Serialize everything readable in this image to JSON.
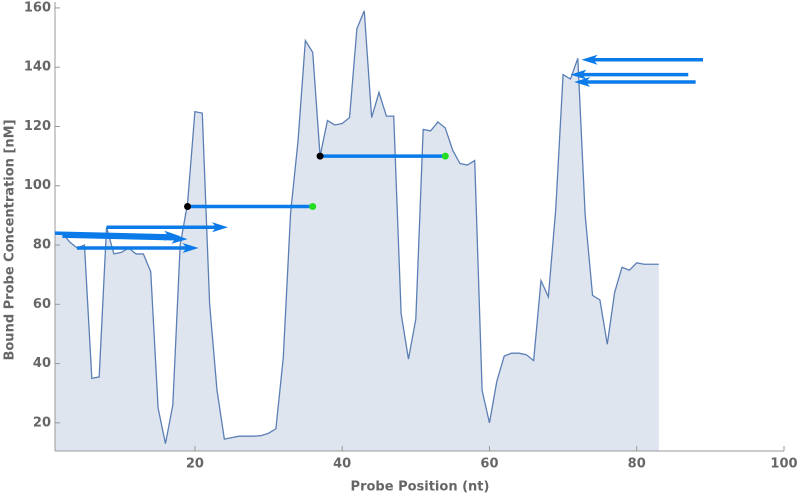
{
  "chart_data": {
    "type": "area",
    "x_label": "Probe Position (nt)",
    "y_label": "Bound Probe Concentration [nM]",
    "xlim": [
      1,
      100
    ],
    "ylim": [
      10.5,
      162
    ],
    "xticks": [
      20,
      40,
      60,
      80,
      100
    ],
    "yticks": [
      20,
      40,
      60,
      80,
      100,
      120,
      140,
      160
    ],
    "x": [
      1,
      2,
      3,
      4,
      5,
      6,
      7,
      8,
      9,
      10,
      11,
      12,
      13,
      14,
      15,
      16,
      17,
      18,
      19,
      20,
      21,
      22,
      23,
      24,
      25,
      26,
      27,
      28,
      29,
      30,
      31,
      32,
      33,
      34,
      35,
      36,
      37,
      38,
      39,
      40,
      41,
      42,
      43,
      44,
      45,
      46,
      47,
      48,
      49,
      50,
      51,
      52,
      53,
      54,
      55,
      56,
      57,
      58,
      59,
      60,
      61,
      62,
      63,
      64,
      65,
      66,
      67,
      68,
      69,
      70,
      71,
      72,
      73,
      74,
      75,
      76,
      77,
      78,
      79,
      80,
      81,
      82,
      83
    ],
    "series": [
      {
        "color": "#5b7fb5",
        "fill": "#dfe5ef",
        "values": [
          84,
          84,
          81,
          79,
          80,
          35,
          35.5,
          86,
          77,
          77.5,
          79,
          77,
          77,
          71,
          25,
          13,
          26,
          80,
          94,
          125,
          124.5,
          60,
          31,
          14.5,
          15,
          15.5,
          15.5,
          15.5,
          15.7,
          16.5,
          18,
          42,
          91,
          115,
          149,
          145,
          110,
          122,
          120.5,
          121,
          123,
          153,
          159,
          123,
          131.5,
          123.5,
          123.5,
          57,
          41.5,
          55,
          119,
          118.5,
          121.5,
          119.5,
          112,
          107.5,
          107,
          108.5,
          31,
          20,
          34,
          42.5,
          43.5,
          43.5,
          43,
          41,
          68,
          62.5,
          92,
          137.5,
          136,
          143,
          90,
          63,
          61.5,
          46.5,
          64,
          72.5,
          71.5,
          74,
          73.5,
          73.5,
          73.5
        ]
      }
    ],
    "arrow_color": "#0a7be8",
    "arrows": [
      {
        "x": [
          1,
          18
        ],
        "y": [
          84,
          83
        ]
      },
      {
        "x": [
          2,
          19
        ],
        "y": [
          83,
          82
        ]
      },
      {
        "x": [
          4,
          20.5
        ],
        "y": [
          79,
          79
        ]
      },
      {
        "x": [
          8,
          24.5
        ],
        "y": [
          86,
          86
        ]
      },
      {
        "x": [
          89,
          72.5
        ],
        "y": [
          142.5,
          142.5
        ]
      },
      {
        "x": [
          87,
          71
        ],
        "y": [
          137.5,
          137.5
        ]
      },
      {
        "x": [
          88,
          71.5
        ],
        "y": [
          135,
          135
        ]
      }
    ],
    "segments": [
      {
        "x": [
          19,
          36
        ],
        "y": [
          93,
          93
        ]
      },
      {
        "x": [
          37,
          54
        ],
        "y": [
          110,
          110
        ]
      }
    ],
    "segment_start_color": "#000000",
    "segment_end_color": "#22dd22"
  }
}
